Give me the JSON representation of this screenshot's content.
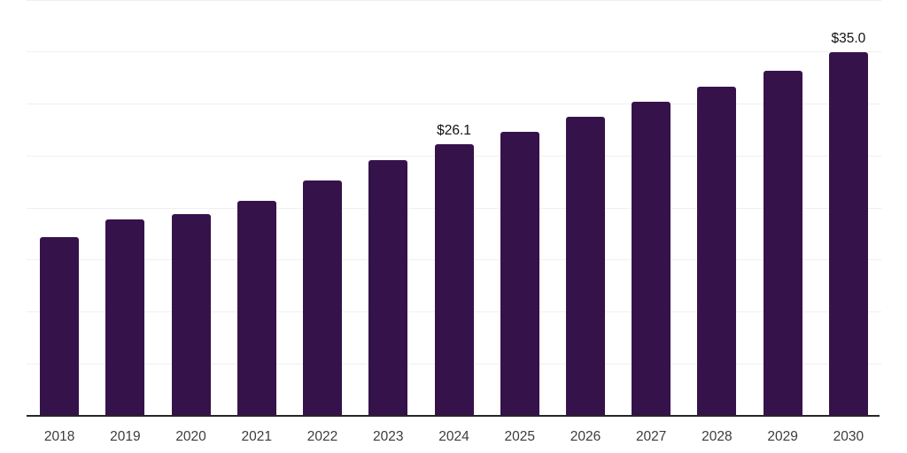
{
  "chart_data": {
    "type": "bar",
    "title": "",
    "xlabel": "",
    "ylabel": "",
    "categories": [
      "2018",
      "2019",
      "2020",
      "2021",
      "2022",
      "2023",
      "2024",
      "2025",
      "2026",
      "2027",
      "2028",
      "2029",
      "2030"
    ],
    "values": [
      17.2,
      18.9,
      19.4,
      20.7,
      22.6,
      24.6,
      26.1,
      27.3,
      28.8,
      30.2,
      31.7,
      33.2,
      35.0
    ],
    "data_labels": [
      "",
      "",
      "",
      "",
      "",
      "",
      "$26.1",
      "",
      "",
      "",
      "",
      "",
      "$35.0"
    ],
    "ylim": [
      0,
      40
    ],
    "gridline_step": 5,
    "grid": "horizontal-only",
    "y_tick_labels_shown": false,
    "legend_position": "none",
    "colors": {
      "bar": "#36124b",
      "axis_line": "#262626",
      "gridline": "#f0f0f0",
      "x_tick_label": "#3c3c3c",
      "data_label": "#111111",
      "background": "#ffffff"
    }
  }
}
